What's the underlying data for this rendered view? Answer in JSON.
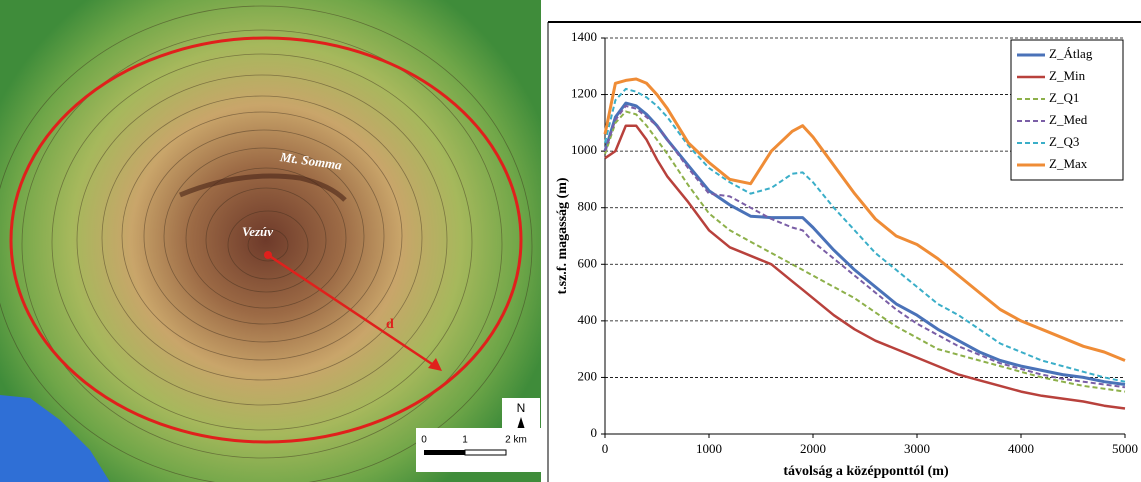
{
  "map": {
    "labels": [
      "Mt. Somma",
      "Vezúv",
      "d"
    ],
    "north": "N",
    "scale": [
      "0",
      "1",
      "2 km"
    ]
  },
  "chart_data": {
    "type": "line",
    "xlabel": "távolság a középponttól (m)",
    "ylabel": "t.sz.f. magasság (m)",
    "x": [
      0,
      100,
      200,
      300,
      400,
      500,
      600,
      800,
      1000,
      1200,
      1400,
      1600,
      1800,
      1900,
      2000,
      2200,
      2400,
      2600,
      2800,
      3000,
      3200,
      3400,
      3600,
      3800,
      4000,
      4200,
      4400,
      4600,
      4800,
      5000
    ],
    "series": [
      {
        "name": "Z_Átlag",
        "color": "#4a72b8",
        "dashed": false,
        "width": 3,
        "values": [
          1000,
          1120,
          1170,
          1160,
          1130,
          1090,
          1040,
          950,
          860,
          810,
          770,
          765,
          765,
          765,
          730,
          650,
          580,
          520,
          460,
          420,
          370,
          330,
          290,
          260,
          240,
          225,
          210,
          200,
          185,
          175
        ]
      },
      {
        "name": "Z_Min",
        "color": "#b8413c",
        "dashed": false,
        "width": 2.5,
        "values": [
          975,
          1000,
          1090,
          1090,
          1040,
          970,
          910,
          820,
          720,
          660,
          630,
          600,
          540,
          510,
          480,
          420,
          370,
          330,
          300,
          270,
          240,
          210,
          190,
          170,
          150,
          135,
          125,
          115,
          100,
          90
        ]
      },
      {
        "name": "Z_Q1",
        "color": "#8db04a",
        "dashed": true,
        "width": 2,
        "values": [
          990,
          1100,
          1140,
          1130,
          1090,
          1040,
          990,
          880,
          780,
          720,
          680,
          640,
          600,
          580,
          560,
          520,
          480,
          430,
          380,
          340,
          300,
          280,
          260,
          240,
          220,
          200,
          185,
          170,
          160,
          150
        ]
      },
      {
        "name": "Z_Med",
        "color": "#7a5ea6",
        "dashed": true,
        "width": 2,
        "values": [
          1000,
          1110,
          1160,
          1150,
          1120,
          1090,
          1040,
          940,
          850,
          840,
          800,
          760,
          730,
          720,
          680,
          620,
          560,
          500,
          440,
          390,
          350,
          310,
          280,
          250,
          230,
          210,
          195,
          185,
          175,
          165
        ]
      },
      {
        "name": "Z_Q3",
        "color": "#3aaec8",
        "dashed": true,
        "width": 2,
        "values": [
          1030,
          1180,
          1220,
          1210,
          1190,
          1160,
          1120,
          1020,
          940,
          890,
          850,
          870,
          920,
          925,
          890,
          800,
          720,
          640,
          580,
          520,
          460,
          420,
          370,
          320,
          290,
          260,
          240,
          220,
          200,
          185
        ]
      },
      {
        "name": "Z_Max",
        "color": "#ef8c36",
        "dashed": false,
        "width": 3,
        "values": [
          1060,
          1240,
          1250,
          1255,
          1240,
          1200,
          1150,
          1030,
          960,
          900,
          885,
          1000,
          1070,
          1090,
          1050,
          950,
          850,
          760,
          700,
          670,
          620,
          560,
          500,
          440,
          400,
          370,
          340,
          310,
          290,
          260
        ]
      }
    ],
    "xlim": [
      0,
      5000
    ],
    "xticks": [
      0,
      1000,
      2000,
      3000,
      4000,
      5000
    ],
    "ylim": [
      0,
      1400
    ],
    "yticks": [
      0,
      200,
      400,
      600,
      800,
      1000,
      1200,
      1400
    ],
    "grid": true,
    "legend": "top-right"
  }
}
